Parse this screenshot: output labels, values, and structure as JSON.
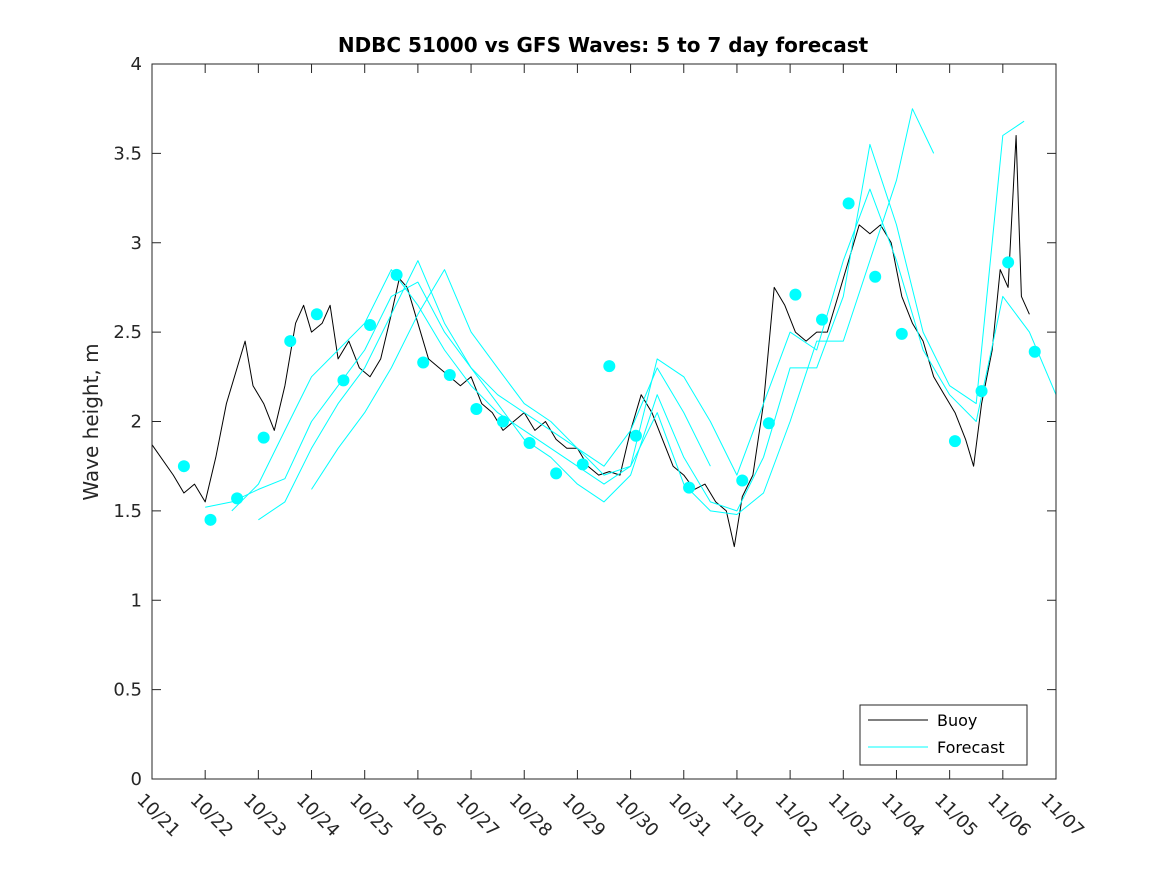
{
  "chart_data": {
    "type": "line",
    "title": "NDBC 51000 vs GFS Waves: 5 to 7 day forecast",
    "xlabel": "",
    "ylabel": "Wave height, m",
    "xlim": [
      0,
      17
    ],
    "ylim": [
      0,
      4
    ],
    "yticks": [
      0,
      0.5,
      1,
      1.5,
      2,
      2.5,
      3,
      3.5,
      4
    ],
    "ytick_labels": [
      "0",
      "0.5",
      "1",
      "1.5",
      "2",
      "2.5",
      "3",
      "3.5",
      "4"
    ],
    "xtick_labels": [
      "10/21",
      "10/22",
      "10/23",
      "10/24",
      "10/25",
      "10/26",
      "10/27",
      "10/28",
      "10/29",
      "10/30",
      "10/31",
      "11/01",
      "11/02",
      "11/03",
      "11/04",
      "11/05",
      "11/06",
      "11/07"
    ],
    "x_unit": "days since 10/21",
    "grid": false,
    "legend": {
      "position": "bottom-right",
      "entries": [
        "Buoy",
        "Forecast"
      ]
    },
    "colors": {
      "buoy": "#000000",
      "forecast": "#00FFFF",
      "axis": "#262626"
    },
    "series": [
      {
        "name": "Buoy",
        "color": "#000000",
        "points": [
          [
            0,
            1.87
          ],
          [
            0.4,
            1.7
          ],
          [
            0.6,
            1.6
          ],
          [
            0.8,
            1.65
          ],
          [
            1.0,
            1.55
          ],
          [
            1.2,
            1.8
          ],
          [
            1.4,
            2.1
          ],
          [
            1.6,
            2.3
          ],
          [
            1.75,
            2.45
          ],
          [
            1.9,
            2.2
          ],
          [
            2.1,
            2.1
          ],
          [
            2.3,
            1.95
          ],
          [
            2.5,
            2.2
          ],
          [
            2.7,
            2.55
          ],
          [
            2.85,
            2.65
          ],
          [
            3.0,
            2.5
          ],
          [
            3.2,
            2.55
          ],
          [
            3.35,
            2.65
          ],
          [
            3.5,
            2.35
          ],
          [
            3.7,
            2.45
          ],
          [
            3.9,
            2.3
          ],
          [
            4.1,
            2.25
          ],
          [
            4.3,
            2.35
          ],
          [
            4.5,
            2.6
          ],
          [
            4.65,
            2.8
          ],
          [
            4.8,
            2.75
          ],
          [
            5.0,
            2.55
          ],
          [
            5.2,
            2.35
          ],
          [
            5.4,
            2.3
          ],
          [
            5.6,
            2.25
          ],
          [
            5.8,
            2.2
          ],
          [
            6.0,
            2.25
          ],
          [
            6.2,
            2.1
          ],
          [
            6.4,
            2.05
          ],
          [
            6.6,
            1.95
          ],
          [
            6.8,
            2.0
          ],
          [
            7.0,
            2.05
          ],
          [
            7.2,
            1.95
          ],
          [
            7.4,
            2.0
          ],
          [
            7.6,
            1.9
          ],
          [
            7.8,
            1.85
          ],
          [
            8.0,
            1.85
          ],
          [
            8.2,
            1.75
          ],
          [
            8.4,
            1.7
          ],
          [
            8.6,
            1.72
          ],
          [
            8.8,
            1.7
          ],
          [
            9.0,
            1.95
          ],
          [
            9.2,
            2.15
          ],
          [
            9.4,
            2.05
          ],
          [
            9.6,
            1.9
          ],
          [
            9.8,
            1.75
          ],
          [
            10.0,
            1.7
          ],
          [
            10.2,
            1.62
          ],
          [
            10.4,
            1.65
          ],
          [
            10.6,
            1.55
          ],
          [
            10.8,
            1.5
          ],
          [
            10.95,
            1.3
          ],
          [
            11.1,
            1.58
          ],
          [
            11.3,
            1.7
          ],
          [
            11.5,
            2.1
          ],
          [
            11.7,
            2.75
          ],
          [
            11.9,
            2.65
          ],
          [
            12.1,
            2.5
          ],
          [
            12.3,
            2.45
          ],
          [
            12.5,
            2.5
          ],
          [
            12.7,
            2.5
          ],
          [
            12.9,
            2.7
          ],
          [
            13.1,
            2.9
          ],
          [
            13.3,
            3.1
          ],
          [
            13.5,
            3.05
          ],
          [
            13.7,
            3.1
          ],
          [
            13.9,
            3.0
          ],
          [
            14.1,
            2.7
          ],
          [
            14.3,
            2.55
          ],
          [
            14.5,
            2.45
          ],
          [
            14.7,
            2.25
          ],
          [
            14.9,
            2.15
          ],
          [
            15.1,
            2.05
          ],
          [
            15.3,
            1.9
          ],
          [
            15.45,
            1.75
          ],
          [
            15.6,
            2.1
          ],
          [
            15.8,
            2.4
          ],
          [
            15.95,
            2.85
          ],
          [
            16.1,
            2.75
          ],
          [
            16.25,
            3.6
          ],
          [
            16.35,
            2.7
          ],
          [
            16.5,
            2.6
          ]
        ]
      },
      {
        "name": "Forecast run 1",
        "color": "#00FFFF",
        "points": [
          [
            1.0,
            1.52
          ],
          [
            1.5,
            1.55
          ],
          [
            2.0,
            1.62
          ],
          [
            2.5,
            1.68
          ],
          [
            3.0,
            2.0
          ],
          [
            3.5,
            2.2
          ],
          [
            4.0,
            2.4
          ],
          [
            4.5,
            2.7
          ],
          [
            5.0,
            2.78
          ],
          [
            5.5,
            2.5
          ],
          [
            6.0,
            2.3
          ],
          [
            6.5,
            2.15
          ],
          [
            7.0,
            2.05
          ],
          [
            7.5,
            1.95
          ],
          [
            8.0,
            1.85
          ],
          [
            8.5,
            1.75
          ],
          [
            9.0,
            1.95
          ],
          [
            9.5,
            2.3
          ],
          [
            10.0,
            2.05
          ],
          [
            10.5,
            1.75
          ]
        ]
      },
      {
        "name": "Forecast run 2",
        "color": "#00FFFF",
        "points": [
          [
            1.5,
            1.5
          ],
          [
            2.0,
            1.65
          ],
          [
            2.5,
            1.95
          ],
          [
            3.0,
            2.25
          ],
          [
            3.5,
            2.4
          ],
          [
            4.0,
            2.55
          ],
          [
            4.5,
            2.85
          ],
          [
            5.0,
            2.65
          ],
          [
            5.5,
            2.4
          ],
          [
            6.0,
            2.2
          ],
          [
            6.5,
            2.05
          ],
          [
            7.0,
            1.95
          ],
          [
            7.5,
            1.85
          ],
          [
            8.0,
            1.75
          ],
          [
            8.5,
            1.65
          ],
          [
            9.0,
            1.75
          ],
          [
            9.5,
            2.35
          ],
          [
            10.0,
            2.25
          ],
          [
            10.5,
            2.0
          ],
          [
            11.0,
            1.7
          ],
          [
            11.5,
            2.1
          ],
          [
            12.0,
            2.5
          ],
          [
            12.5,
            2.4
          ],
          [
            13.0,
            2.9
          ],
          [
            13.5,
            3.3
          ],
          [
            14.0,
            2.9
          ],
          [
            14.5,
            2.4
          ],
          [
            15.0,
            2.15
          ],
          [
            15.5,
            2.0
          ],
          [
            16.0,
            2.7
          ],
          [
            16.5,
            2.5
          ],
          [
            17.0,
            2.15
          ]
        ]
      },
      {
        "name": "Forecast run 3",
        "color": "#00FFFF",
        "points": [
          [
            2.0,
            1.45
          ],
          [
            2.5,
            1.55
          ],
          [
            3.0,
            1.85
          ],
          [
            3.5,
            2.1
          ],
          [
            4.0,
            2.3
          ],
          [
            4.5,
            2.6
          ],
          [
            5.0,
            2.9
          ],
          [
            5.5,
            2.55
          ],
          [
            6.0,
            2.3
          ],
          [
            6.5,
            2.1
          ],
          [
            7.0,
            1.9
          ],
          [
            7.5,
            1.8
          ],
          [
            8.0,
            1.65
          ],
          [
            8.5,
            1.55
          ],
          [
            9.0,
            1.7
          ],
          [
            9.5,
            2.15
          ],
          [
            10.0,
            1.8
          ],
          [
            10.5,
            1.55
          ],
          [
            11.0,
            1.5
          ],
          [
            11.5,
            1.8
          ],
          [
            12.0,
            2.3
          ],
          [
            12.5,
            2.3
          ],
          [
            13.0,
            2.7
          ],
          [
            13.5,
            3.55
          ],
          [
            14.0,
            3.1
          ],
          [
            14.5,
            2.5
          ],
          [
            15.0,
            2.2
          ],
          [
            15.5,
            2.1
          ],
          [
            16.0,
            3.6
          ],
          [
            16.4,
            3.68
          ]
        ]
      },
      {
        "name": "Forecast run 4",
        "color": "#00FFFF",
        "points": [
          [
            3.0,
            1.62
          ],
          [
            3.5,
            1.85
          ],
          [
            4.0,
            2.05
          ],
          [
            4.5,
            2.3
          ],
          [
            5.0,
            2.6
          ],
          [
            5.5,
            2.85
          ],
          [
            6.0,
            2.5
          ],
          [
            6.5,
            2.3
          ],
          [
            7.0,
            2.1
          ],
          [
            7.5,
            2.0
          ],
          [
            8.0,
            1.85
          ],
          [
            8.5,
            1.7
          ],
          [
            9.0,
            1.75
          ],
          [
            9.5,
            2.05
          ],
          [
            10.0,
            1.65
          ],
          [
            10.5,
            1.5
          ],
          [
            11.0,
            1.48
          ],
          [
            11.5,
            1.6
          ],
          [
            12.0,
            2.0
          ],
          [
            12.5,
            2.45
          ],
          [
            13.0,
            2.45
          ],
          [
            13.5,
            2.9
          ],
          [
            14.0,
            3.35
          ],
          [
            14.3,
            3.75
          ],
          [
            14.7,
            3.5
          ]
        ]
      },
      {
        "name": "Forecast markers",
        "color": "#00FFFF",
        "marker": "circle",
        "points": [
          [
            0.6,
            1.75
          ],
          [
            1.1,
            1.45
          ],
          [
            1.6,
            1.57
          ],
          [
            2.1,
            1.91
          ],
          [
            2.6,
            2.45
          ],
          [
            3.1,
            2.6
          ],
          [
            3.6,
            2.23
          ],
          [
            4.1,
            2.54
          ],
          [
            4.6,
            2.82
          ],
          [
            5.1,
            2.33
          ],
          [
            5.6,
            2.26
          ],
          [
            6.1,
            2.07
          ],
          [
            6.6,
            2.0
          ],
          [
            7.1,
            1.88
          ],
          [
            7.6,
            1.71
          ],
          [
            8.1,
            1.76
          ],
          [
            8.6,
            2.31
          ],
          [
            9.1,
            1.92
          ],
          [
            10.1,
            1.63
          ],
          [
            11.1,
            1.67
          ],
          [
            11.6,
            1.99
          ],
          [
            12.1,
            2.71
          ],
          [
            12.6,
            2.57
          ],
          [
            13.1,
            3.22
          ],
          [
            13.6,
            2.81
          ],
          [
            14.1,
            2.49
          ],
          [
            15.1,
            1.89
          ],
          [
            15.6,
            2.17
          ],
          [
            16.1,
            2.89
          ],
          [
            16.6,
            2.39
          ]
        ]
      }
    ]
  }
}
